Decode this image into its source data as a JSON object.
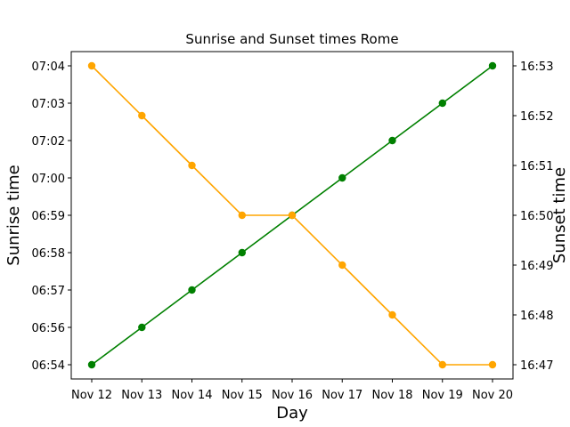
{
  "chart_data": {
    "type": "line",
    "title": "Sunrise and Sunset times Rome",
    "xlabel": "Day",
    "ylabel_left": "Sunrise time",
    "ylabel_right": "Sunset time",
    "categories": [
      "Nov 12",
      "Nov 13",
      "Nov 14",
      "Nov 15",
      "Nov 16",
      "Nov 17",
      "Nov 18",
      "Nov 19",
      "Nov 20"
    ],
    "left_axis": {
      "tick_labels": [
        "06:54",
        "06:56",
        "06:57",
        "06:58",
        "06:59",
        "07:00",
        "07:02",
        "07:03",
        "07:04"
      ]
    },
    "right_axis": {
      "tick_labels": [
        "16:47",
        "16:48",
        "16:49",
        "16:50",
        "16:51",
        "16:52",
        "16:53"
      ],
      "ylim": [
        "16:47",
        "16:53"
      ]
    },
    "series": [
      {
        "axis": "left",
        "color": "#008000",
        "values": [
          "06:54",
          "06:56",
          "06:57",
          "06:58",
          "06:59",
          "07:00",
          "07:02",
          "07:03",
          "07:04"
        ]
      },
      {
        "axis": "right",
        "color": "#FFA500",
        "values": [
          "16:53",
          "16:52",
          "16:51",
          "16:50",
          "16:50",
          "16:49",
          "16:48",
          "16:47",
          "16:47"
        ]
      }
    ],
    "grid": false,
    "legend": "none"
  }
}
